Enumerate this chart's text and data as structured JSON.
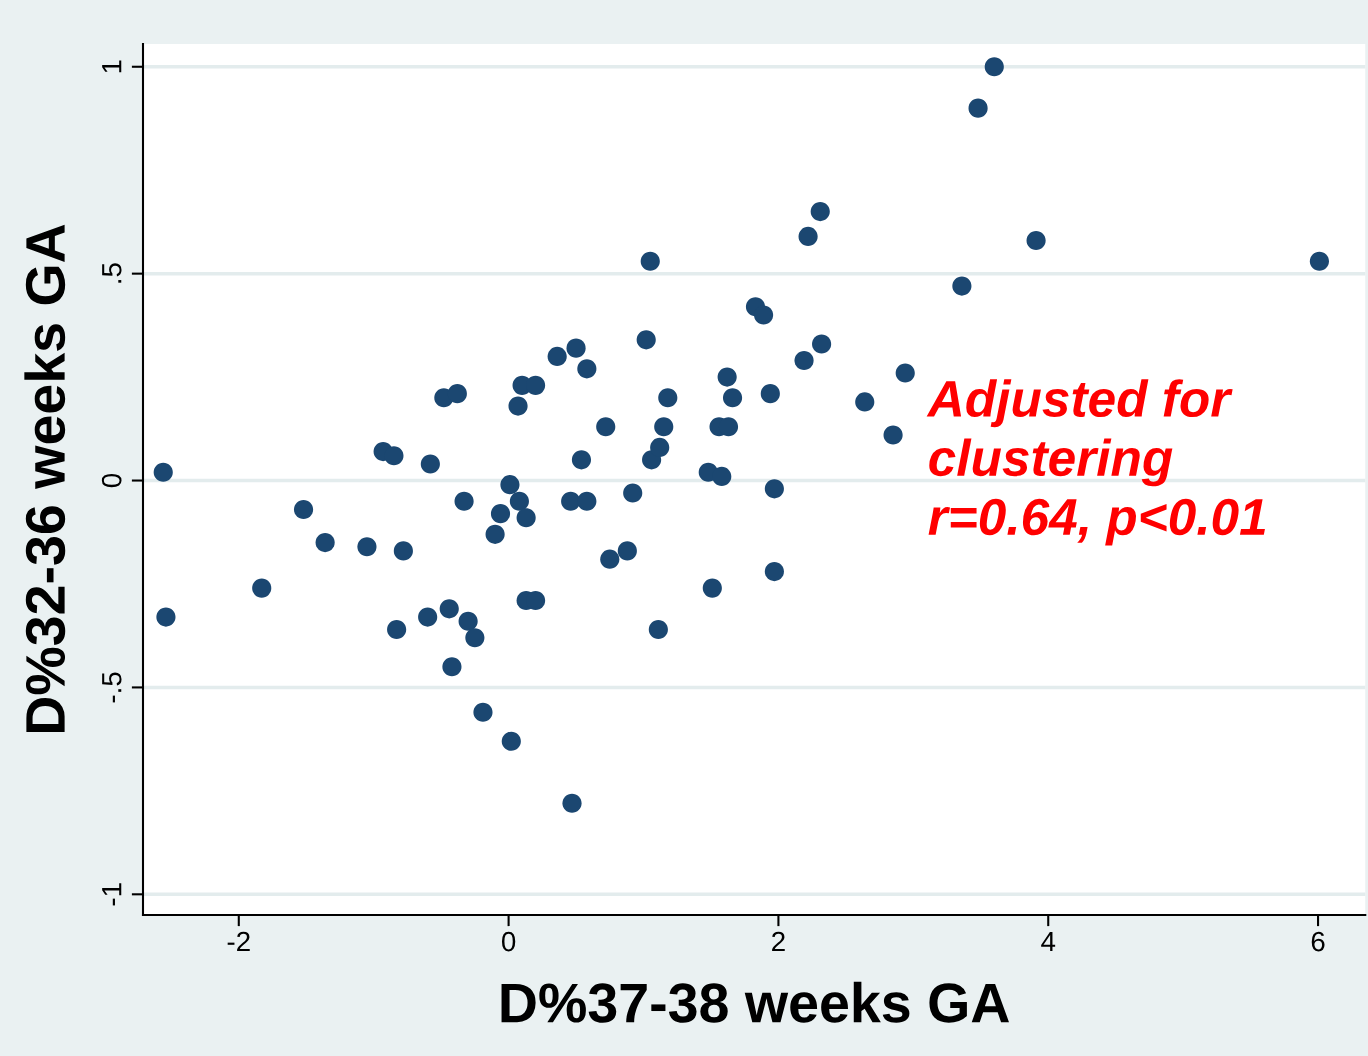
{
  "chart_data": {
    "type": "scatter",
    "xlabel": "D%37-38 weeks GA",
    "ylabel": "D%32-36 weeks GA",
    "annotations": [
      "Adjusted for\nclustering\nr=0.64, p<0.01"
    ],
    "xlim": [
      -2.71,
      6.35
    ],
    "ylim": [
      -1.05,
      1.055
    ],
    "xticks": [
      -2,
      0,
      2,
      4,
      6
    ],
    "yticks": [
      {
        "value": -1,
        "label": "-1"
      },
      {
        "value": -0.5,
        "label": "-.5"
      },
      {
        "value": 0,
        "label": "0"
      },
      {
        "value": 0.5,
        "label": ".5"
      },
      {
        "value": 1,
        "label": "1"
      }
    ],
    "grid": "y",
    "marker": "circle",
    "legend": false,
    "series": [
      {
        "color": "#1b4771",
        "x": [
          -2.56,
          -2.54,
          -1.83,
          -1.52,
          -1.36,
          -1.05,
          -0.93,
          -0.85,
          -0.78,
          -0.83,
          -0.6,
          -0.58,
          -0.48,
          -0.38,
          -0.44,
          -0.42,
          -0.33,
          -0.3,
          -0.25,
          -0.19,
          -0.1,
          -0.06,
          0.01,
          0.02,
          0.07,
          0.08,
          0.1,
          0.13,
          0.13,
          0.2,
          0.2,
          0.36,
          0.46,
          0.47,
          0.5,
          0.54,
          0.58,
          0.58,
          0.72,
          0.75,
          0.88,
          0.92,
          1.02,
          1.05,
          1.06,
          1.11,
          1.12,
          1.15,
          1.18,
          1.48,
          1.51,
          1.56,
          1.58,
          1.62,
          1.63,
          1.66,
          1.83,
          1.89,
          1.94,
          1.97,
          1.97,
          2.19,
          2.22,
          2.31,
          2.32,
          2.64,
          2.85,
          2.94,
          3.36,
          3.48,
          3.6,
          3.91,
          6.01
        ],
        "values": [
          0.02,
          -0.33,
          -0.26,
          -0.07,
          -0.15,
          -0.16,
          0.07,
          0.06,
          -0.17,
          -0.36,
          -0.33,
          0.04,
          0.2,
          0.21,
          -0.31,
          -0.45,
          -0.05,
          -0.34,
          -0.38,
          -0.56,
          -0.13,
          -0.08,
          -0.01,
          -0.63,
          0.18,
          -0.05,
          0.23,
          -0.09,
          -0.29,
          0.23,
          -0.29,
          0.3,
          -0.05,
          -0.78,
          0.32,
          0.05,
          0.27,
          -0.05,
          0.13,
          -0.19,
          -0.17,
          -0.03,
          0.34,
          0.53,
          0.05,
          -0.36,
          0.08,
          0.13,
          0.2,
          0.02,
          -0.26,
          0.13,
          0.01,
          0.25,
          0.13,
          0.2,
          0.42,
          0.4,
          0.21,
          -0.02,
          -0.22,
          0.29,
          0.59,
          0.65,
          0.33,
          0.19,
          0.11,
          0.26,
          0.47,
          0.9,
          1.0,
          0.58,
          0.53
        ]
      }
    ]
  }
}
